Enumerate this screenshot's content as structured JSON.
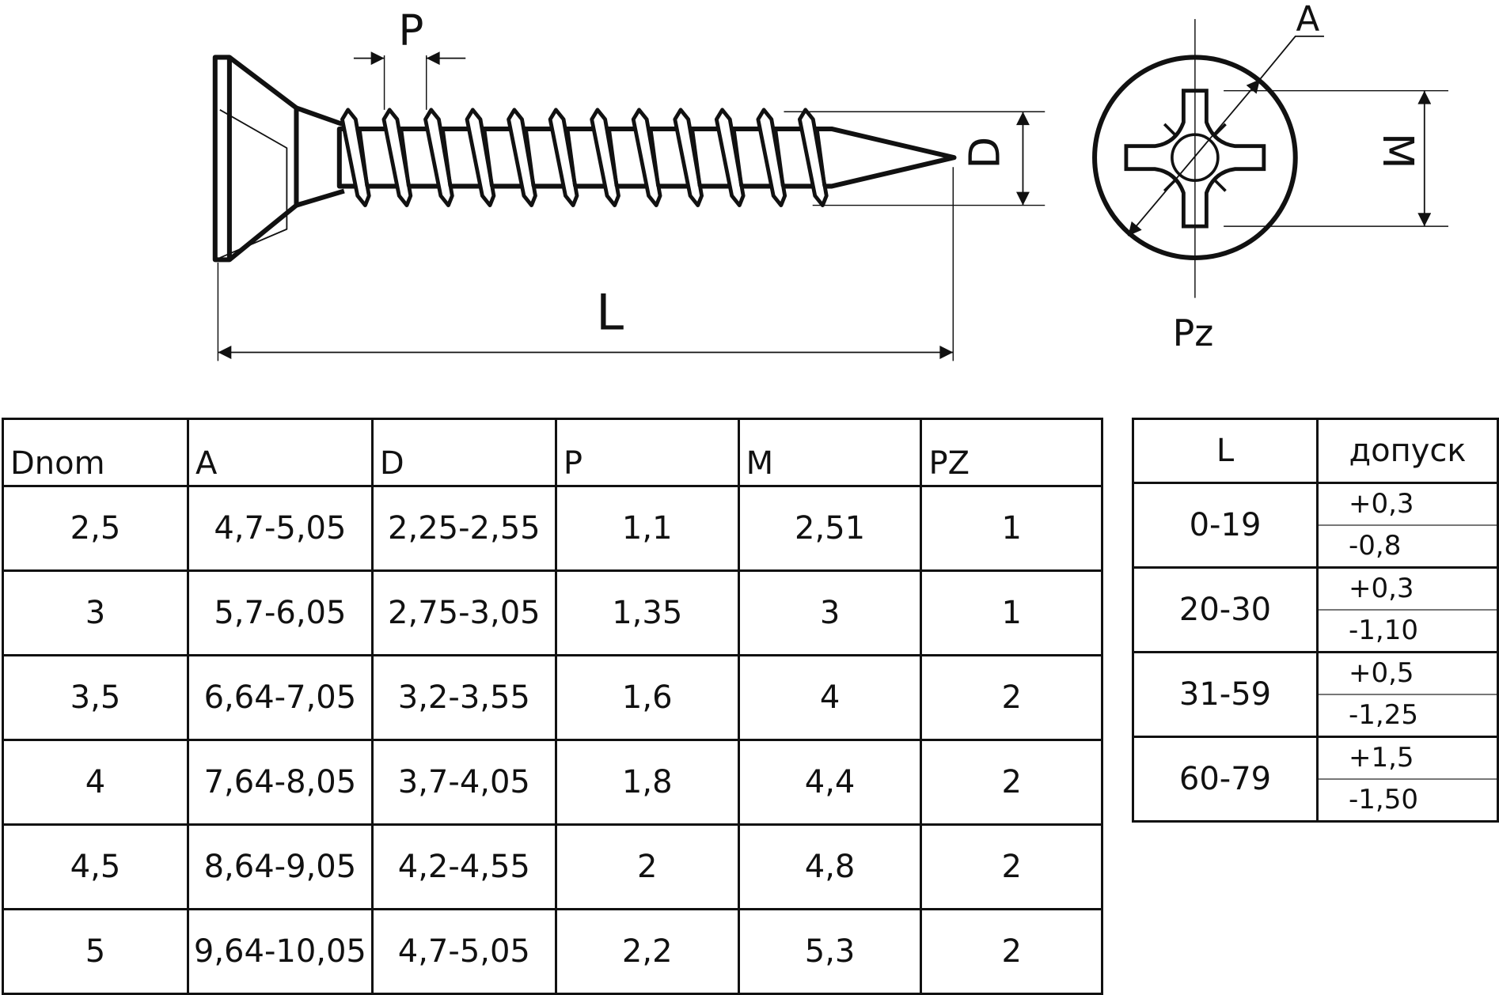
{
  "drawing": {
    "labels": {
      "P": "P",
      "D": "D",
      "L": "L",
      "A": "A",
      "M": "M",
      "Pz": "Pz"
    }
  },
  "main_table": {
    "headers": [
      "Dnom",
      "A",
      "D",
      "P",
      "M",
      "PZ"
    ],
    "rows": [
      [
        "2,5",
        "4,7-5,05",
        "2,25-2,55",
        "1,1",
        "2,51",
        "1"
      ],
      [
        "3",
        "5,7-6,05",
        "2,75-3,05",
        "1,35",
        "3",
        "1"
      ],
      [
        "3,5",
        "6,64-7,05",
        "3,2-3,55",
        "1,6",
        "4",
        "2"
      ],
      [
        "4",
        "7,64-8,05",
        "3,7-4,05",
        "1,8",
        "4,4",
        "2"
      ],
      [
        "4,5",
        "8,64-9,05",
        "4,2-4,55",
        "2",
        "4,8",
        "2"
      ],
      [
        "5",
        "9,64-10,05",
        "4,7-5,05",
        "2,2",
        "5,3",
        "2"
      ]
    ]
  },
  "tolerance_table": {
    "headers": [
      "L",
      "допуск"
    ],
    "rows": [
      {
        "range": "0-19",
        "plus": "+0,3",
        "minus": "-0,8"
      },
      {
        "range": "20-30",
        "plus": "+0,3",
        "minus": "-1,10"
      },
      {
        "range": "31-59",
        "plus": "+0,5",
        "minus": "-1,25"
      },
      {
        "range": "60-79",
        "plus": "+1,5",
        "minus": "-1,50"
      }
    ]
  }
}
